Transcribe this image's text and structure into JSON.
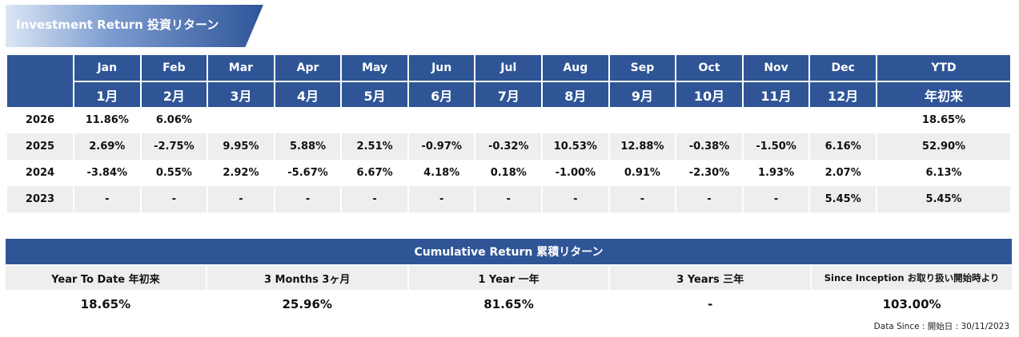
{
  "title": "Investment Return 投資リターン",
  "monthly": {
    "months_en": [
      "Jan",
      "Feb",
      "Mar",
      "Apr",
      "May",
      "Jun",
      "Jul",
      "Aug",
      "Sep",
      "Oct",
      "Nov",
      "Dec",
      "YTD"
    ],
    "months_jp": [
      "1月",
      "2月",
      "3月",
      "4月",
      "5月",
      "6月",
      "7月",
      "8月",
      "9月",
      "10月",
      "11月",
      "12月",
      "年初来"
    ],
    "rows": [
      {
        "year": "2026",
        "values": [
          "11.86%",
          "6.06%",
          "",
          "",
          "",
          "",
          "",
          "",
          "",
          "",
          "",
          "",
          "18.65%"
        ]
      },
      {
        "year": "2025",
        "values": [
          "2.69%",
          "-2.75%",
          "9.95%",
          "5.88%",
          "2.51%",
          "-0.97%",
          "-0.32%",
          "10.53%",
          "12.88%",
          "-0.38%",
          "-1.50%",
          "6.16%",
          "52.90%"
        ]
      },
      {
        "year": "2024",
        "values": [
          "-3.84%",
          "0.55%",
          "2.92%",
          "-5.67%",
          "6.67%",
          "4.18%",
          "0.18%",
          "-1.00%",
          "0.91%",
          "-2.30%",
          "1.93%",
          "2.07%",
          "6.13%"
        ]
      },
      {
        "year": "2023",
        "values": [
          "-",
          "-",
          "-",
          "-",
          "-",
          "-",
          "-",
          "-",
          "-",
          "-",
          "-",
          "5.45%",
          "5.45%"
        ]
      }
    ]
  },
  "cumulative": {
    "title": "Cumulative Return 累積リターン",
    "labels": [
      "Year To Date 年初来",
      "3 Months 3ヶ月",
      "1 Year 一年",
      "3 Years 三年",
      "Since Inception お取り扱い開始時より"
    ],
    "values": [
      "18.65%",
      "25.96%",
      "81.65%",
      "-",
      "103.00%"
    ]
  },
  "footnote": "Data Since : 開始日 : 30/11/2023",
  "colors": {
    "header_bg": "#2f5597",
    "row_shade": "#eeeeee"
  }
}
